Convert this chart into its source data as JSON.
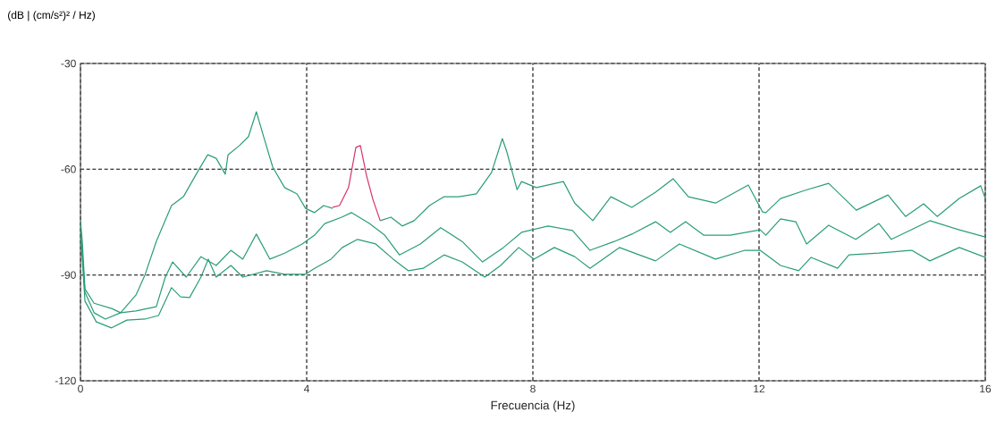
{
  "chart_data": {
    "type": "line",
    "ylabel": "(dB | (cm/s²)² / Hz)",
    "xlabel": "Frecuencia (Hz)",
    "xlim": [
      0,
      16
    ],
    "xticks": [
      0,
      4,
      8,
      12,
      16
    ],
    "ylim": [
      -120,
      -30
    ],
    "yticks": [
      -120,
      -90,
      -60,
      -30
    ],
    "grid": true,
    "series": [
      {
        "color": "#2a9d78",
        "x": [
          0,
          0.03,
          0.08,
          0.24,
          0.55,
          0.71,
          0.98,
          1.14,
          1.34,
          1.61,
          1.82,
          2.09,
          2.25,
          2.4,
          2.56,
          2.61,
          2.81,
          2.97,
          3.11,
          3.24,
          3.4,
          3.61,
          3.83,
          3.98,
          4.14,
          4.3,
          4.46,
          4.9,
          5.3,
          5.49,
          5.69,
          5.9,
          6.17,
          6.43,
          6.69,
          7.0,
          7.27,
          7.46,
          7.54,
          7.72,
          7.8,
          8.06,
          8.54,
          8.74,
          9.06,
          9.38,
          9.75,
          10.17,
          10.48,
          10.75,
          11.23,
          11.81,
          12.06,
          12.12,
          12.38,
          12.81,
          13.23,
          13.72,
          14.28,
          14.59,
          14.91,
          15.15,
          15.54,
          15.92,
          16.0
        ],
        "values": [
          -74.6,
          -80,
          -94,
          -98,
          -99.5,
          -100.7,
          -95.7,
          -90,
          -80.5,
          -70.3,
          -67.8,
          -60.2,
          -55.9,
          -56.9,
          -61.4,
          -55.9,
          -53.3,
          -50.8,
          -43.7,
          -50.8,
          -59.4,
          -65.2,
          -67,
          -71.1,
          -72.3,
          -70.3,
          -71.1,
          null,
          -74.6,
          -73.6,
          -76.1,
          -74.6,
          -70.3,
          -67.8,
          -67.8,
          -67,
          -60.9,
          -51.3,
          -55.1,
          -65.8,
          -63.5,
          -65.2,
          -63.5,
          -69.6,
          -74.6,
          -67.8,
          -70.8,
          -66.5,
          -62.7,
          -67.8,
          -69.6,
          -64.5,
          -72.1,
          -72.3,
          -68.3,
          -66,
          -64,
          -71.6,
          -67.3,
          -73.4,
          -69.8,
          -73.4,
          -68.3,
          -64.7,
          -68.3
        ]
      },
      {
        "color": "#d6336a",
        "x": [
          4.46,
          4.58,
          4.74,
          4.87,
          4.95,
          5.06,
          5.17,
          5.3
        ],
        "values": [
          -70.8,
          -70.3,
          -65.2,
          -53.8,
          -53.3,
          -61.9,
          -68.5,
          -74.6
        ]
      },
      {
        "color": "#2a9d78",
        "x": [
          0,
          0.08,
          0.24,
          0.44,
          0.71,
          0.98,
          1.34,
          1.5,
          1.63,
          1.87,
          2.13,
          2.4,
          2.66,
          2.87,
          3.11,
          3.35,
          3.61,
          3.92,
          4.14,
          4.32,
          4.62,
          4.79,
          5.11,
          5.38,
          5.64,
          6.01,
          6.37,
          6.75,
          7.11,
          7.48,
          7.8,
          8.27,
          8.7,
          9.01,
          9.44,
          9.75,
          10.17,
          10.43,
          10.7,
          11.02,
          11.49,
          12.02,
          12.12,
          12.38,
          12.65,
          12.84,
          13.23,
          13.71,
          14.12,
          14.34,
          15.02,
          15.54,
          16.0
        ],
        "values": [
          -76,
          -94.9,
          -100.7,
          -102.5,
          -100.7,
          -100.2,
          -99,
          -90.6,
          -86.3,
          -90.6,
          -84.8,
          -87.3,
          -83,
          -85.5,
          -78.4,
          -85.5,
          -83.8,
          -81.2,
          -78.7,
          -75.4,
          -73.6,
          -72.3,
          -75.4,
          -78.7,
          -84.3,
          -81.2,
          -76.6,
          -80.5,
          -86.3,
          -82.2,
          -77.9,
          -76.1,
          -77.4,
          -83,
          -80.5,
          -78.4,
          -74.9,
          -77.9,
          -74.9,
          -78.7,
          -78.7,
          -77.2,
          -78.7,
          -74.1,
          -74.9,
          -81.2,
          -75.9,
          -79.9,
          -75.4,
          -79.9,
          -74.6,
          -77.2,
          -79.2
        ]
      },
      {
        "color": "#2a9d78",
        "x": [
          0,
          0.08,
          0.28,
          0.55,
          0.82,
          1.14,
          1.38,
          1.61,
          1.77,
          1.93,
          2.13,
          2.26,
          2.4,
          2.66,
          2.87,
          3.29,
          3.61,
          3.98,
          4.14,
          4.43,
          4.63,
          4.9,
          5.22,
          5.53,
          5.8,
          6.06,
          6.43,
          6.75,
          7.15,
          7.43,
          7.75,
          8.02,
          8.38,
          8.74,
          9.01,
          9.53,
          10.17,
          10.59,
          11.23,
          11.75,
          12.02,
          12.38,
          12.7,
          12.92,
          13.39,
          13.59,
          14.12,
          14.7,
          15.02,
          15.54,
          16.0
        ],
        "values": [
          -78,
          -97.4,
          -103.3,
          -105,
          -102.8,
          -102.5,
          -101.5,
          -93.6,
          -96.2,
          -96.4,
          -90.6,
          -85.5,
          -90.6,
          -87.3,
          -90.6,
          -88.8,
          -89.8,
          -89.8,
          -88.1,
          -85.5,
          -82.2,
          -79.9,
          -81.2,
          -85.5,
          -88.8,
          -88.1,
          -84.3,
          -86.3,
          -90.6,
          -87.3,
          -82.2,
          -85.5,
          -82.2,
          -84.8,
          -88.1,
          -82.2,
          -86,
          -81.2,
          -85.5,
          -83,
          -83,
          -87.3,
          -88.8,
          -85,
          -88.1,
          -84.3,
          -83.8,
          -83,
          -86,
          -82.2,
          -85
        ]
      }
    ]
  }
}
